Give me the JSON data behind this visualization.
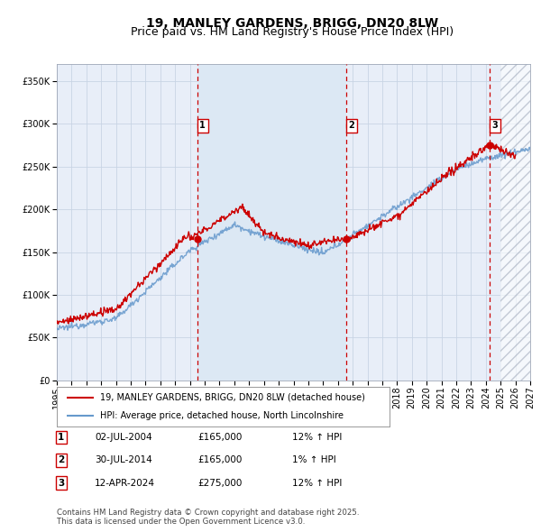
{
  "title": "19, MANLEY GARDENS, BRIGG, DN20 8LW",
  "subtitle": "Price paid vs. HM Land Registry's House Price Index (HPI)",
  "ylim": [
    0,
    370000
  ],
  "yticks": [
    0,
    50000,
    100000,
    150000,
    200000,
    250000,
    300000,
    350000
  ],
  "xlim_start": 1995.0,
  "xlim_end": 2027.0,
  "background_color": "#ffffff",
  "plot_bg_color": "#e8eef8",
  "ownership_bg_color": "#dce8f4",
  "grid_color": "#c8d4e4",
  "sale_dates": [
    2004.5,
    2014.58,
    2024.28
  ],
  "sale_prices": [
    165000,
    165000,
    275000
  ],
  "sale_labels": [
    "1",
    "2",
    "3"
  ],
  "hpi_line_color": "#6699cc",
  "price_line_color": "#cc0000",
  "dashed_line_color": "#cc0000",
  "legend_items": [
    "19, MANLEY GARDENS, BRIGG, DN20 8LW (detached house)",
    "HPI: Average price, detached house, North Lincolnshire"
  ],
  "table_rows": [
    [
      "1",
      "02-JUL-2004",
      "£165,000",
      "12% ↑ HPI"
    ],
    [
      "2",
      "30-JUL-2014",
      "£165,000",
      "1% ↑ HPI"
    ],
    [
      "3",
      "12-APR-2024",
      "£275,000",
      "12% ↑ HPI"
    ]
  ],
  "footer": "Contains HM Land Registry data © Crown copyright and database right 2025.\nThis data is licensed under the Open Government Licence v3.0.",
  "title_fontsize": 10,
  "subtitle_fontsize": 9,
  "axis_fontsize": 7,
  "label_fontsize": 7.5
}
